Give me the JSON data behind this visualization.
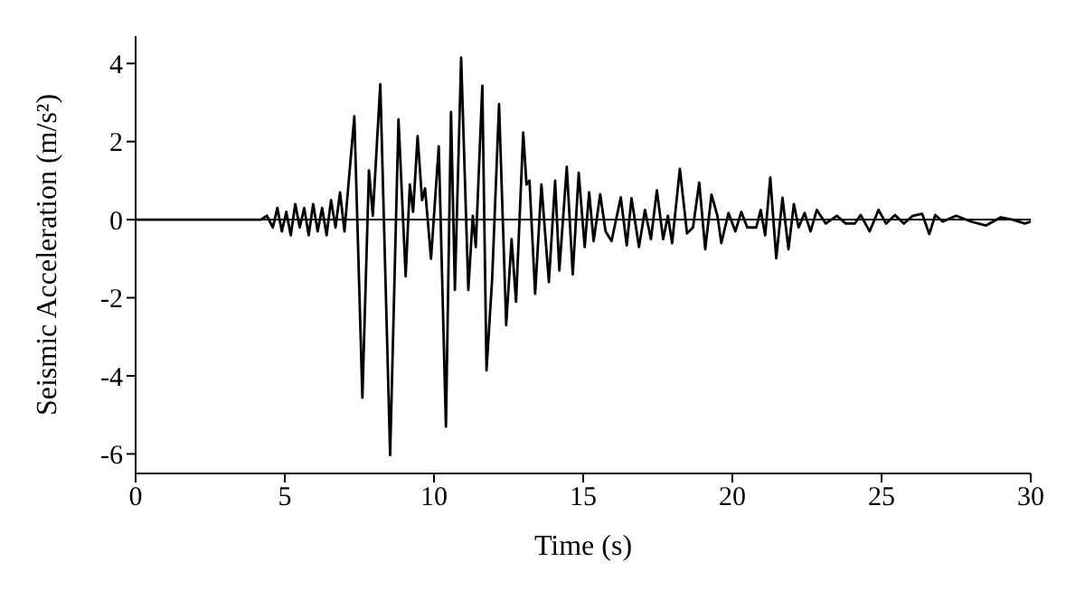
{
  "chart_data": {
    "type": "line",
    "xlabel": "Time (s)",
    "ylabel": "Seismic Acceleration (m/s²)",
    "xlim": [
      0,
      30
    ],
    "xticks": [
      0,
      5,
      10,
      15,
      20,
      25,
      30
    ],
    "ylim": [
      -6.5,
      4.7
    ],
    "yticks": [
      -6,
      -4,
      -2,
      0,
      2,
      4
    ],
    "grid": false,
    "legend": false,
    "marker": "none",
    "line_style": "solid",
    "ref_lines": [
      {
        "axis": "y",
        "value": 0,
        "color": "#000000"
      }
    ],
    "series": [
      {
        "color": "#000000",
        "x": [
          0,
          4.2,
          4.4,
          4.6,
          4.75,
          4.9,
          5.05,
          5.2,
          5.35,
          5.5,
          5.65,
          5.8,
          5.95,
          6.1,
          6.25,
          6.4,
          6.55,
          6.7,
          6.85,
          7.0,
          7.1,
          7.33,
          7.6,
          7.82,
          7.95,
          8.2,
          8.53,
          8.81,
          9.05,
          9.19,
          9.3,
          9.45,
          9.6,
          9.7,
          9.9,
          10.16,
          10.4,
          10.57,
          10.7,
          10.91,
          11.15,
          11.3,
          11.4,
          11.62,
          11.76,
          11.95,
          12.18,
          12.42,
          12.6,
          12.75,
          12.99,
          13.1,
          13.2,
          13.39,
          13.6,
          13.85,
          14.06,
          14.2,
          14.45,
          14.65,
          14.85,
          15.05,
          15.2,
          15.35,
          15.57,
          15.75,
          15.95,
          16.26,
          16.46,
          16.62,
          16.87,
          17.07,
          17.27,
          17.47,
          17.68,
          17.84,
          17.98,
          18.24,
          18.48,
          18.68,
          18.89,
          19.09,
          19.3,
          19.5,
          19.63,
          19.87,
          20.1,
          20.3,
          20.5,
          20.8,
          20.95,
          21.1,
          21.27,
          21.47,
          21.68,
          21.88,
          22.06,
          22.22,
          22.42,
          22.62,
          22.83,
          23.13,
          23.5,
          23.8,
          24.1,
          24.3,
          24.6,
          24.9,
          25.15,
          25.45,
          25.75,
          26.05,
          26.36,
          26.6,
          26.8,
          27.05,
          27.5,
          28.0,
          28.5,
          29.0,
          29.4,
          29.8,
          30
        ],
        "values": [
          0,
          0,
          0.1,
          -0.2,
          0.3,
          -0.3,
          0.2,
          -0.4,
          0.4,
          -0.2,
          0.3,
          -0.4,
          0.4,
          -0.3,
          0.3,
          -0.4,
          0.5,
          -0.2,
          0.7,
          -0.3,
          0.6,
          2.65,
          -4.56,
          1.26,
          0.1,
          3.47,
          -6.03,
          2.57,
          -1.45,
          0.9,
          0.2,
          2.14,
          0.5,
          0.8,
          -1.0,
          1.88,
          -5.3,
          2.76,
          -1.8,
          4.15,
          -1.8,
          0.1,
          -0.7,
          3.43,
          -3.86,
          -1.5,
          2.96,
          -2.7,
          -0.5,
          -2.1,
          2.23,
          0.9,
          1.0,
          -1.9,
          0.9,
          -1.6,
          1.0,
          -1.3,
          1.35,
          -1.4,
          1.2,
          -0.7,
          0.7,
          -0.55,
          0.65,
          -0.3,
          -0.55,
          0.57,
          -0.66,
          0.55,
          -0.7,
          0.25,
          -0.5,
          0.75,
          -0.5,
          0.1,
          -0.6,
          1.3,
          -0.35,
          -0.2,
          0.95,
          -0.76,
          0.64,
          0.1,
          -0.6,
          0.17,
          -0.3,
          0.2,
          -0.2,
          -0.2,
          0.25,
          -0.4,
          1.08,
          -0.99,
          0.56,
          -0.76,
          0.4,
          -0.2,
          0.17,
          -0.3,
          0.25,
          -0.1,
          0.1,
          -0.1,
          -0.1,
          0.12,
          -0.3,
          0.25,
          -0.1,
          0.12,
          -0.1,
          0.1,
          0.15,
          -0.37,
          0.12,
          -0.05,
          0.1,
          -0.05,
          -0.15,
          0.06,
          0,
          -0.1,
          -0.05
        ]
      }
    ]
  }
}
